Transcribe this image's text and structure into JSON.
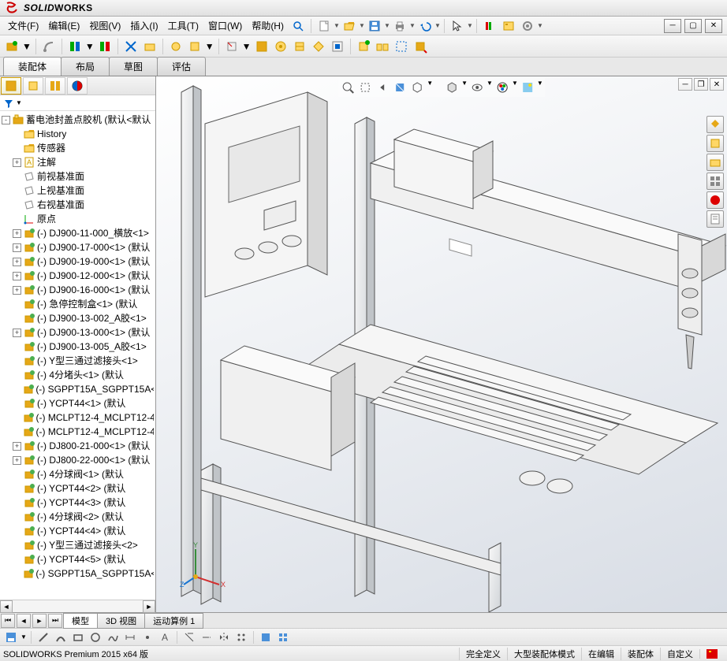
{
  "app": {
    "brand_prefix": "SOLID",
    "brand_suffix": "WORKS",
    "version_text": "SOLIDWORKS Premium 2015 x64 版"
  },
  "menu": {
    "file": "文件(F)",
    "edit": "编辑(E)",
    "view": "视图(V)",
    "insert": "插入(I)",
    "tools": "工具(T)",
    "window": "窗口(W)",
    "help": "帮助(H)"
  },
  "ribbon_tabs": {
    "assembly": "装配体",
    "layout": "布局",
    "sketch": "草图",
    "evaluate": "评估"
  },
  "tree": {
    "root": "蓄电池封盖点胶机   (默认<默认",
    "history": "History",
    "sensors": "传感器",
    "annotations": "注解",
    "front_plane": "前视基准面",
    "top_plane": "上视基准面",
    "right_plane": "右视基准面",
    "origin": "原点",
    "items": [
      "(-) DJ900-11-000_横放<1>",
      "(-) DJ900-17-000<1>  (默认",
      "(-) DJ900-19-000<1>  (默认",
      "(-) DJ900-12-000<1>  (默认",
      "(-) DJ900-16-000<1>  (默认",
      "(-) 急停控制盒<1> (默认",
      "(-) DJ900-13-002_A胶<1>",
      "(-) DJ900-13-000<1>  (默认",
      "(-) DJ900-13-005_A胶<1>",
      "(-) Y型三通过滤接头<1>",
      "(-) 4分堵头<1>  (默认",
      "(-) SGPPT15A_SGPPT15A<1",
      "(-) YCPT44<1>  (默认",
      "(-) MCLPT12-4_MCLPT12-4<",
      "(-) MCLPT12-4_MCLPT12-4<",
      "(-) DJ800-21-000<1>  (默认",
      "(-) DJ800-22-000<1>  (默认",
      "(-) 4分球阀<1>  (默认",
      "(-) YCPT44<2>  (默认",
      "(-) YCPT44<3>  (默认",
      "(-) 4分球阀<2>  (默认",
      "(-) YCPT44<4>  (默认",
      "(-) Y型三通过滤接头<2>",
      "(-) YCPT44<5>  (默认",
      "(-) SGPPT15A_SGPPT15A<2"
    ]
  },
  "bottom_tabs": {
    "model": "模型",
    "view3d": "3D 视图",
    "motion": "运动算例 1"
  },
  "status": {
    "full_define": "完全定义",
    "large_asm": "大型装配体模式",
    "editing": "在编辑",
    "assembly": "装配体",
    "custom": "自定义"
  },
  "colors": {
    "accent": "#4a90d9",
    "tree_icon_asm": "#e6a817",
    "tree_icon_part": "#4caf50",
    "axis_x": "#d32f2f",
    "axis_y": "#388e3c",
    "axis_z": "#1976d2"
  }
}
